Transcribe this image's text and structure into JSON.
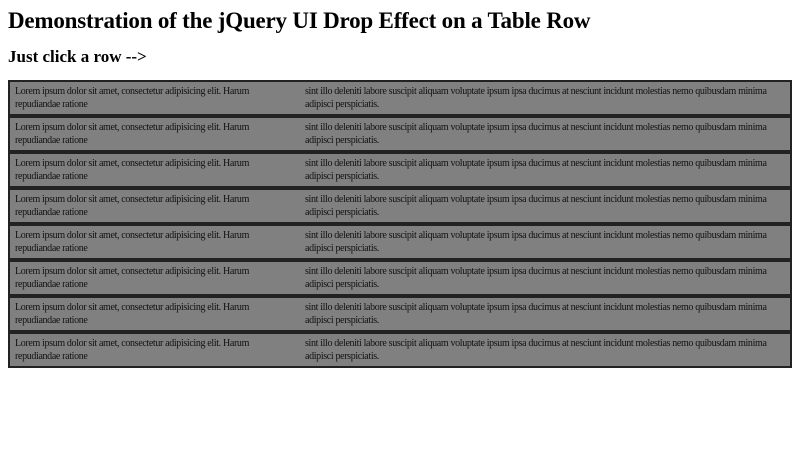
{
  "page": {
    "title": "Demonstration of the jQuery UI Drop Effect on a Table Row",
    "instruction": "Just click a row -->"
  },
  "table": {
    "rows": [
      {
        "col1": "Lorem ipsum dolor sit amet, consectetur adipisicing elit. Harum repudiandae ratione",
        "col2": "sint illo deleniti labore suscipit aliquam voluptate ipsum ipsa ducimus at nesciunt incidunt molestias nemo quibusdam minima adipisci perspiciatis."
      },
      {
        "col1": "Lorem ipsum dolor sit amet, consectetur adipisicing elit. Harum repudiandae ratione",
        "col2": "sint illo deleniti labore suscipit aliquam voluptate ipsum ipsa ducimus at nesciunt incidunt molestias nemo quibusdam minima adipisci perspiciatis."
      },
      {
        "col1": "Lorem ipsum dolor sit amet, consectetur adipisicing elit. Harum repudiandae ratione",
        "col2": "sint illo deleniti labore suscipit aliquam voluptate ipsum ipsa ducimus at nesciunt incidunt molestias nemo quibusdam minima adipisci perspiciatis."
      },
      {
        "col1": "Lorem ipsum dolor sit amet, consectetur adipisicing elit. Harum repudiandae ratione",
        "col2": "sint illo deleniti labore suscipit aliquam voluptate ipsum ipsa ducimus at nesciunt incidunt molestias nemo quibusdam minima adipisci perspiciatis."
      },
      {
        "col1": "Lorem ipsum dolor sit amet, consectetur adipisicing elit. Harum repudiandae ratione",
        "col2": "sint illo deleniti labore suscipit aliquam voluptate ipsum ipsa ducimus at nesciunt incidunt molestias nemo quibusdam minima adipisci perspiciatis."
      },
      {
        "col1": "Lorem ipsum dolor sit amet, consectetur adipisicing elit. Harum repudiandae ratione",
        "col2": "sint illo deleniti labore suscipit aliquam voluptate ipsum ipsa ducimus at nesciunt incidunt molestias nemo quibusdam minima adipisci perspiciatis."
      },
      {
        "col1": "Lorem ipsum dolor sit amet, consectetur adipisicing elit. Harum repudiandae ratione",
        "col2": "sint illo deleniti labore suscipit aliquam voluptate ipsum ipsa ducimus at nesciunt incidunt molestias nemo quibusdam minima adipisci perspiciatis."
      },
      {
        "col1": "Lorem ipsum dolor sit amet, consectetur adipisicing elit. Harum repudiandae ratione",
        "col2": "sint illo deleniti labore suscipit aliquam voluptate ipsum ipsa ducimus at nesciunt incidunt molestias nemo quibusdam minima adipisci perspiciatis."
      }
    ]
  },
  "colors": {
    "page_background": "#ffffff",
    "row_background": "#808080",
    "row_border": "#222222",
    "cell_text": "#111111",
    "heading_text": "#000000"
  }
}
